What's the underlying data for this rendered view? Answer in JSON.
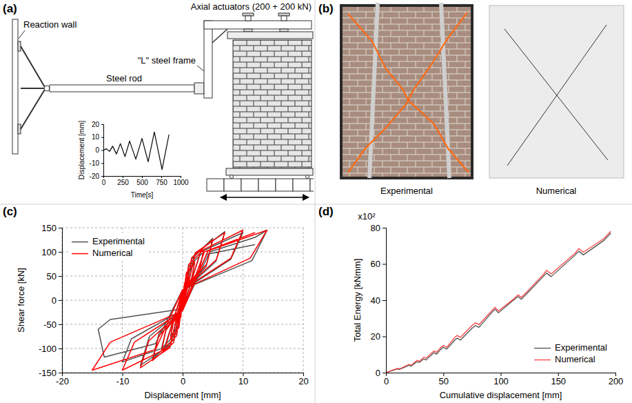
{
  "figure": {
    "panel_labels": [
      "(a)",
      "(b)",
      "(c)",
      "(d)"
    ],
    "setup": {
      "actuators": "Axial actuators (200 + 200 kN)",
      "reaction_wall": "Reaction wall",
      "frame": "\"L\" steel frame",
      "rod": "Steel rod"
    },
    "crack_pattern": {
      "captions": [
        "Experimental",
        "Numerical"
      ]
    }
  },
  "chart_data": [
    {
      "type": "line",
      "x_label": "Time[s]",
      "y_label": "Displacement [mm]",
      "xlim": [
        0,
        1000
      ],
      "ylim": [
        -20,
        20
      ],
      "xticks": [
        0,
        250,
        500,
        750,
        1000
      ],
      "yticks": [
        -20,
        -10,
        0,
        10,
        20
      ],
      "grid": false,
      "series": [
        {
          "color": "#000000",
          "x": [
            0,
            40,
            80,
            120,
            170,
            220,
            280,
            340,
            420,
            500,
            580,
            660,
            760,
            850
          ],
          "values": [
            0,
            1,
            -1,
            3,
            -3,
            5,
            -5,
            7,
            -7,
            9,
            -9,
            14,
            -15,
            12
          ]
        }
      ]
    },
    {
      "type": "line",
      "x_label": "Displacement [mm]",
      "y_label": "Shear force [kN]",
      "xlim": [
        -20,
        20
      ],
      "ylim": [
        -150,
        150
      ],
      "xticks": [
        -20,
        -10,
        0,
        10,
        20
      ],
      "yticks": [
        -150,
        -100,
        -50,
        0,
        50,
        100,
        150
      ],
      "grid": true,
      "legend": "top-left",
      "series": [
        {
          "name": "Experimental",
          "color": "#505050",
          "x": [
            0,
            0.3,
            1,
            0.7,
            0,
            -0.3,
            -1,
            -0.7,
            0,
            0.6,
            2,
            1.5,
            0,
            -0.6,
            -2,
            -1.5,
            0,
            1,
            3.5,
            2.7,
            0,
            -1,
            -3.5,
            -2.7,
            0,
            1.5,
            5,
            3.9,
            0,
            -1.5,
            -5,
            -3.9,
            0,
            2,
            7,
            5.5,
            0,
            -2,
            -7,
            -5.5,
            0,
            3,
            10,
            8,
            0,
            -3,
            -10,
            -8.5,
            0,
            4.5,
            12,
            14,
            11.5,
            0,
            -4.5,
            -13,
            -14,
            -12,
            0,
            4,
            12
          ],
          "values": [
            0,
            30,
            45,
            28,
            5,
            -30,
            -45,
            -28,
            -5,
            50,
            78,
            45,
            10,
            -50,
            -75,
            -42,
            -10,
            70,
            100,
            60,
            14,
            -68,
            -100,
            -58,
            -14,
            85,
            128,
            70,
            16,
            -82,
            -122,
            -68,
            -16,
            95,
            142,
            80,
            18,
            -92,
            -135,
            -75,
            -18,
            100,
            140,
            85,
            20,
            -98,
            -128,
            -80,
            -20,
            100,
            130,
            145,
            82,
            22,
            -90,
            -118,
            -60,
            -40,
            -18,
            95,
            115
          ]
        },
        {
          "name": "Numerical",
          "color": "#ff0000",
          "x": [
            0,
            0.3,
            1,
            0.8,
            0,
            -0.3,
            -1,
            -0.8,
            0,
            0.6,
            2,
            1.6,
            0,
            -0.6,
            -2,
            -1.6,
            0,
            1,
            3.5,
            2.8,
            0,
            -1,
            -3.5,
            -2.8,
            0,
            1.5,
            5,
            4,
            0,
            -1.5,
            -5,
            -4,
            0,
            2.1,
            7,
            5.6,
            0,
            -2.1,
            -7,
            -5.6,
            0,
            3,
            10,
            8,
            0,
            -3,
            -10,
            -8,
            0,
            4.2,
            14,
            11.2,
            0,
            -4.5,
            -15,
            -12,
            0,
            3.6,
            12
          ],
          "values": [
            0,
            35,
            50,
            30,
            7,
            -35,
            -50,
            -30,
            -7,
            56,
            80,
            48,
            12,
            -56,
            -80,
            -48,
            -12,
            74,
            105,
            63,
            16,
            -74,
            -105,
            -63,
            -16,
            88,
            125,
            75,
            19,
            -88,
            -125,
            -75,
            -19,
            98,
            140,
            84,
            21,
            -98,
            -140,
            -84,
            -21,
            102,
            145,
            87,
            22,
            -102,
            -145,
            -87,
            -22,
            102,
            145,
            87,
            22,
            -102,
            -145,
            -87,
            -22,
            100,
            140
          ]
        }
      ]
    },
    {
      "type": "line",
      "x_label": "Cumulative displacement [mm]",
      "y_label": "Total Energy [kNmm]",
      "annotations": [
        "x10²"
      ],
      "xlim": [
        0,
        200
      ],
      "ylim": [
        0,
        80
      ],
      "xticks": [
        0,
        50,
        100,
        150,
        200
      ],
      "yticks": [
        0,
        20,
        40,
        60,
        80
      ],
      "grid": false,
      "legend": "bottom-right",
      "series": [
        {
          "name": "Experimental",
          "color": "#505050",
          "x": [
            0,
            5,
            10,
            12,
            18,
            20,
            22,
            26,
            27,
            29,
            33,
            35,
            40,
            42,
            44,
            48,
            50,
            53,
            60,
            62,
            65,
            75,
            78,
            81,
            92,
            95,
            98,
            112,
            115,
            118,
            137,
            140,
            144,
            165,
            168,
            172,
            190,
            196
          ],
          "values": [
            0,
            1,
            2,
            1.8,
            3.5,
            4,
            3.6,
            5.5,
            6,
            5.6,
            7.5,
            7,
            10,
            11,
            10.2,
            13,
            14,
            13,
            18,
            19,
            18,
            24.5,
            26,
            25,
            33,
            35,
            33,
            40.5,
            42,
            40.5,
            53,
            55,
            53,
            65,
            67,
            65,
            73,
            77
          ]
        },
        {
          "name": "Numerical",
          "color": "#ff4040",
          "x": [
            0,
            5,
            10,
            12,
            18,
            20,
            22,
            26,
            27,
            29,
            33,
            35,
            40,
            42,
            44,
            48,
            50,
            53,
            60,
            62,
            65,
            75,
            78,
            81,
            92,
            95,
            98,
            112,
            115,
            118,
            137,
            140,
            144,
            165,
            168,
            172,
            190,
            196
          ],
          "values": [
            0,
            1.2,
            2.3,
            2.1,
            4,
            4.5,
            4.1,
            6.2,
            6.8,
            6.3,
            8.5,
            8,
            11,
            12,
            11.2,
            14,
            15,
            14,
            19.5,
            20.5,
            19.5,
            26,
            27.5,
            26.5,
            34,
            36,
            34,
            41,
            43,
            41.5,
            54,
            56.5,
            54.5,
            66,
            68.5,
            66.5,
            74,
            78
          ]
        }
      ]
    }
  ]
}
